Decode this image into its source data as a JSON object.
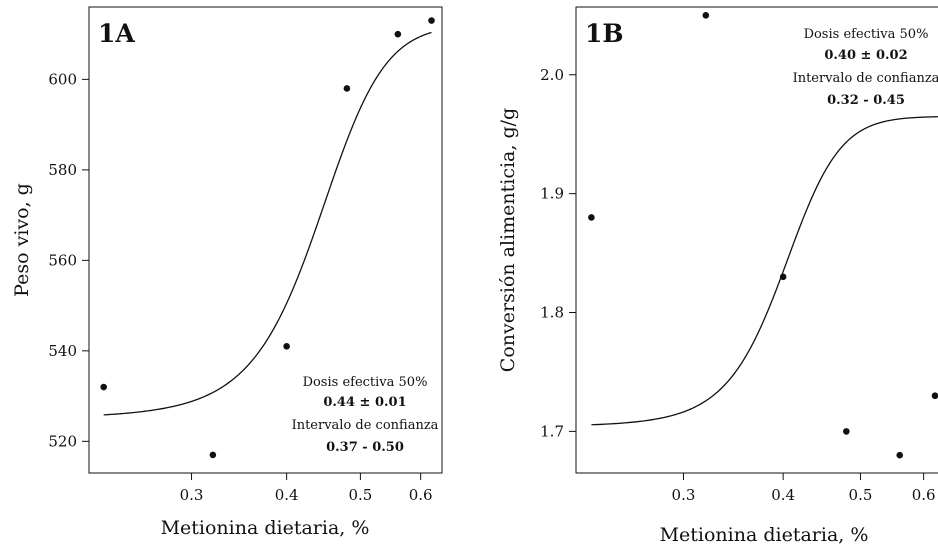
{
  "chart_data": [
    {
      "type": "scatter",
      "panel_label": "1A",
      "xlabel": "Metionina dietaria, %",
      "ylabel": "Peso vivo, g",
      "x_scale": "log",
      "xlim": [
        0.22,
        0.64
      ],
      "ylim": [
        513,
        616
      ],
      "x_ticks": [
        0.3,
        0.4,
        0.5,
        0.6
      ],
      "x_tick_labels": [
        "0.3",
        "0.4",
        "0.5",
        "0.6"
      ],
      "y_ticks": [
        520,
        540,
        560,
        580,
        600
      ],
      "y_tick_labels": [
        "520",
        "540",
        "560",
        "580",
        "600"
      ],
      "points": [
        {
          "x": 0.23,
          "y": 532
        },
        {
          "x": 0.32,
          "y": 517
        },
        {
          "x": 0.4,
          "y": 541
        },
        {
          "x": 0.48,
          "y": 598
        },
        {
          "x": 0.56,
          "y": 610
        },
        {
          "x": 0.62,
          "y": 613
        }
      ],
      "fitted_curve": {
        "model": "log-logistic",
        "lower": 525,
        "upper": 612,
        "ed50": 0.44,
        "slope": 22,
        "x_range": [
          0.23,
          0.62
        ]
      },
      "annotation": [
        "Dosis efectiva 50%",
        "0.44 ± 0.01",
        "Intervalo de confianza",
        "0.37 - 0.50"
      ],
      "grid": false
    },
    {
      "type": "scatter",
      "panel_label": "1B",
      "xlabel": "Metionina dietaria, %",
      "ylabel": "Conversión alimenticia, g/g",
      "x_scale": "log",
      "xlim": [
        0.22,
        0.64
      ],
      "ylim": [
        1.665,
        2.057
      ],
      "x_ticks": [
        0.3,
        0.4,
        0.5,
        0.6
      ],
      "x_tick_labels": [
        "0.3",
        "0.4",
        "0.5",
        "0.6"
      ],
      "y_ticks": [
        1.7,
        1.8,
        1.9,
        2.0
      ],
      "y_tick_labels": [
        "1.7",
        "1.8",
        "1.9",
        "2.0"
      ],
      "points": [
        {
          "x": 0.23,
          "y": 1.88
        },
        {
          "x": 0.32,
          "y": 2.05
        },
        {
          "x": 0.4,
          "y": 1.83
        },
        {
          "x": 0.48,
          "y": 1.7
        },
        {
          "x": 0.56,
          "y": 1.68
        },
        {
          "x": 0.62,
          "y": 1.73
        }
      ],
      "fitted_curve": {
        "model": "log-logistic",
        "lower": 1.704,
        "upper": 1.965,
        "ed50": 0.4,
        "slope": 30,
        "x_range": [
          0.23,
          0.64
        ]
      },
      "annotation": [
        "Dosis efectiva 50%",
        "0.40 ± 0.02",
        "Intervalo de confianza",
        "0.32 - 0.45"
      ],
      "grid": false
    }
  ]
}
